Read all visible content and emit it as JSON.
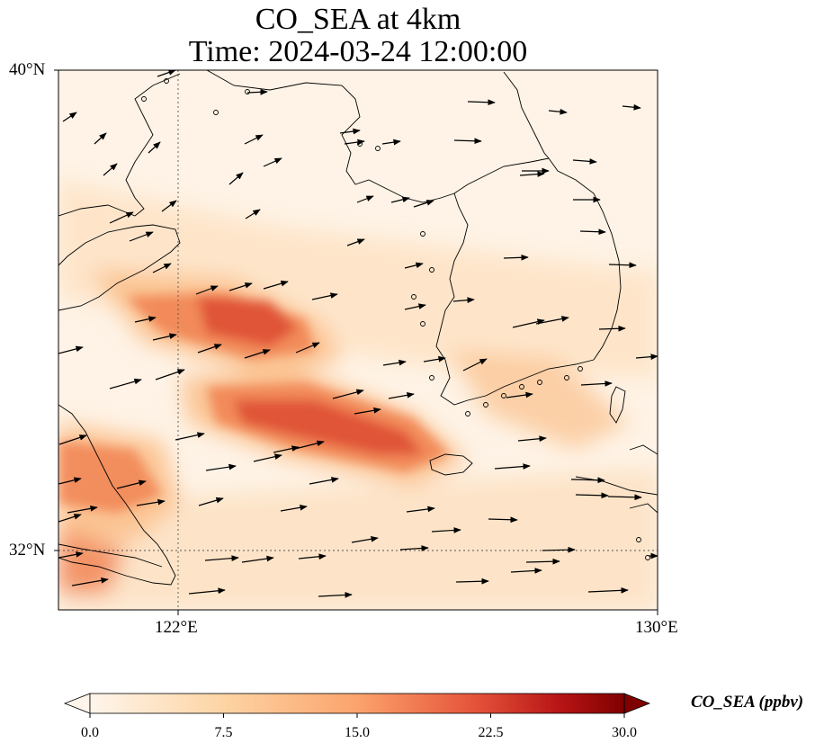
{
  "title": {
    "line1": "CO_SEA at 4km",
    "line2": "Time: 2024-03-24 12:00:00"
  },
  "axes": {
    "lat_labels": [
      "40°N",
      "32°N"
    ],
    "lon_labels": [
      "122°E",
      "130°E"
    ],
    "lat_range": [
      31,
      40
    ],
    "lon_range": [
      120,
      130
    ],
    "gridlines": {
      "lats": [
        32
      ],
      "lons": [
        122
      ]
    }
  },
  "colorbar": {
    "label": "CO_SEA (ppbv)",
    "ticks": [
      "0.0",
      "7.5",
      "15.0",
      "22.5",
      "30.0"
    ],
    "range": [
      0,
      30
    ],
    "extend": "both",
    "colormap": [
      "#fff5eb",
      "#fee6ce",
      "#fdd0a2",
      "#fdae6b",
      "#fd8d3c",
      "#f16913",
      "#d94801",
      "#a63603",
      "#7f2704"
    ],
    "colormap_shown": [
      "#fff5eb",
      "#fdd4a4",
      "#fca36c",
      "#e5533a",
      "#b71415",
      "#7f0000"
    ]
  },
  "field_colors": {
    "background": "#fef3e6",
    "low": "#fde0c0",
    "mid": "#fbc08c",
    "high": "#f0804f",
    "peak": "#dd4b32"
  },
  "wind_arrow_color": "#000000",
  "coastline_color": "#000000"
}
